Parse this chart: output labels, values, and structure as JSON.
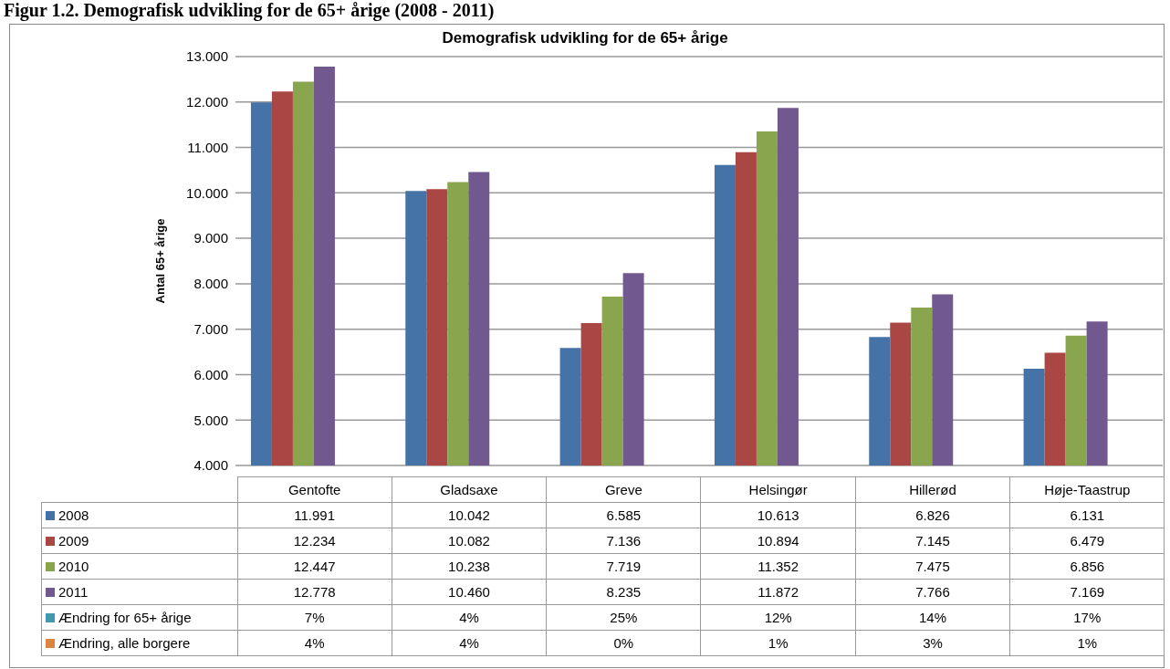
{
  "chart_data": {
    "type": "bar",
    "title": "Demografisk udvikling for de 65+ årige",
    "annotations": [
      "Figur 1.2. Demografisk udvikling for de 65+ årige (2008 - 2011)"
    ],
    "ylabel": "Antal 65+ årige",
    "categories": [
      "Gentofte",
      "Gladsaxe",
      "Greve",
      "Helsingør",
      "Hillerød",
      "Høje-Taastrup"
    ],
    "series": [
      {
        "name": "2008",
        "color": "#4572a7",
        "values": [
          11991,
          10042,
          6585,
          10613,
          6826,
          6131
        ],
        "value_labels": [
          "11.991",
          "10.042",
          "6.585",
          "10.613",
          "6.826",
          "6.131"
        ]
      },
      {
        "name": "2009",
        "color": "#aa4643",
        "values": [
          12234,
          10082,
          7136,
          10894,
          7145,
          6479
        ],
        "value_labels": [
          "12.234",
          "10.082",
          "7.136",
          "10.894",
          "7.145",
          "6.479"
        ]
      },
      {
        "name": "2010",
        "color": "#89a54e",
        "values": [
          12447,
          10238,
          7719,
          11352,
          7475,
          6856
        ],
        "value_labels": [
          "12.447",
          "10.238",
          "7.719",
          "11.352",
          "7.475",
          "6.856"
        ]
      },
      {
        "name": "2011",
        "color": "#71588f",
        "values": [
          12778,
          10460,
          8235,
          11872,
          7766,
          7169
        ],
        "value_labels": [
          "12.778",
          "10.460",
          "8.235",
          "11.872",
          "7.766",
          "7.169"
        ]
      },
      {
        "name": "Ændring for 65+ årige",
        "color": "#4198af",
        "values": [
          null,
          null,
          null,
          null,
          null,
          null
        ],
        "value_labels": [
          "7%",
          "4%",
          "25%",
          "12%",
          "14%",
          "17%"
        ]
      },
      {
        "name": "Ændring, alle borgere",
        "color": "#db843d",
        "values": [
          null,
          null,
          null,
          null,
          null,
          null
        ],
        "value_labels": [
          "4%",
          "4%",
          "0%",
          "1%",
          "3%",
          "1%"
        ]
      }
    ],
    "ylim": [
      4000,
      13000
    ],
    "yticks": [
      {
        "value": 4000,
        "label": "4.000"
      },
      {
        "value": 5000,
        "label": "5.000"
      },
      {
        "value": 6000,
        "label": "6.000"
      },
      {
        "value": 7000,
        "label": "7.000"
      },
      {
        "value": 8000,
        "label": "8.000"
      },
      {
        "value": 9000,
        "label": "9.000"
      },
      {
        "value": 10000,
        "label": "10.000"
      },
      {
        "value": 11000,
        "label": "11.000"
      },
      {
        "value": 12000,
        "label": "12.000"
      },
      {
        "value": 13000,
        "label": "13.000"
      }
    ],
    "grid": "y",
    "legend": "bottom"
  }
}
